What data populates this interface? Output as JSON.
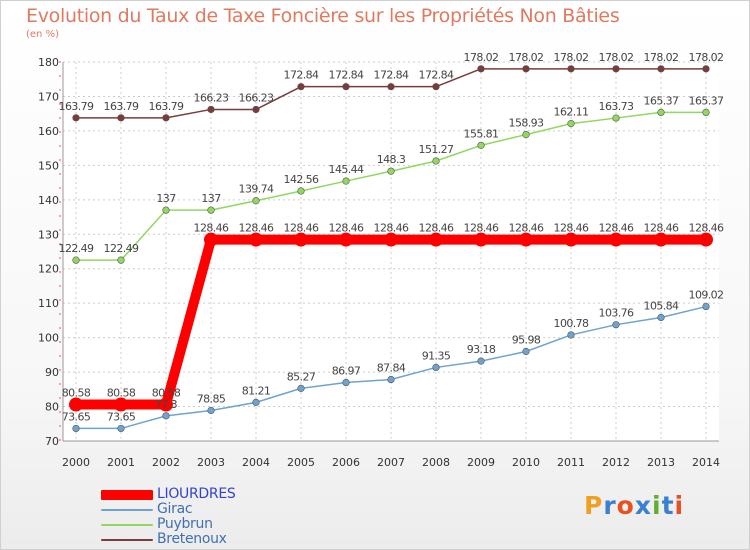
{
  "chart_data": {
    "type": "line",
    "title": "Evolution du Taux de Taxe Foncière sur les Propriétés Non Bâties",
    "ylabel": "(en %)",
    "xlabel": "",
    "ylim": [
      70,
      180
    ],
    "yticks": [
      70,
      80,
      90,
      100,
      110,
      120,
      130,
      140,
      150,
      160,
      170,
      180
    ],
    "grid": true,
    "legend_position": "bottom-left",
    "x": [
      "2000",
      "2001",
      "2002",
      "2003",
      "2004",
      "2005",
      "2006",
      "2007",
      "2008",
      "2009",
      "2010",
      "2011",
      "2012",
      "2013",
      "2014"
    ],
    "series": [
      {
        "name": "LIOURDRES",
        "color": "#ff0000",
        "values": [
          80.58,
          80.58,
          80.58,
          128.46,
          128.46,
          128.46,
          128.46,
          128.46,
          128.46,
          128.46,
          128.46,
          128.46,
          128.46,
          128.46,
          128.46
        ],
        "labels": [
          "80.58",
          "80.58",
          "80.58",
          "128.46",
          "128.46",
          "128.46",
          "128.46",
          "128.46",
          "128.46",
          "128.46",
          "128.46",
          "128.46",
          "128.46",
          "128.46",
          "128.46"
        ]
      },
      {
        "name": "Girac",
        "color": "#6fa3cf",
        "values": [
          73.65,
          73.65,
          77.3,
          78.85,
          81.21,
          85.27,
          86.97,
          87.84,
          91.35,
          93.18,
          95.98,
          100.78,
          103.76,
          105.84,
          109.02
        ],
        "labels": [
          "73.65",
          "73.65",
          "77.3",
          "78.85",
          "81.21",
          "85.27",
          "86.97",
          "87.84",
          "91.35",
          "93.18",
          "95.98",
          "100.78",
          "103.76",
          "105.84",
          "109.02"
        ]
      },
      {
        "name": "Puybrun",
        "color": "#90d860",
        "values": [
          122.49,
          122.49,
          137,
          137,
          139.74,
          142.56,
          145.44,
          148.3,
          151.27,
          155.81,
          158.93,
          162.11,
          163.73,
          165.37,
          165.37
        ],
        "labels": [
          "122.49",
          "122.49",
          "137",
          "137",
          "139.74",
          "142.56",
          "145.44",
          "148.3",
          "151.27",
          "155.81",
          "158.93",
          "162.11",
          "163.73",
          "165.37",
          "165.37"
        ]
      },
      {
        "name": "Bretenoux",
        "color": "#7b3b3b",
        "values": [
          163.79,
          163.79,
          163.79,
          166.23,
          166.23,
          172.84,
          172.84,
          172.84,
          172.84,
          178.02,
          178.02,
          178.02,
          178.02,
          178.02,
          178.02
        ],
        "labels": [
          "163.79",
          "163.79",
          "163.79",
          "166.23",
          "166.23",
          "172.84",
          "172.84",
          "172.84",
          "172.84",
          "178.02",
          "178.02",
          "178.02",
          "178.02",
          "178.02",
          "178.02"
        ]
      }
    ]
  },
  "logo": {
    "text": "Proxiti",
    "colors": [
      "#f0a020",
      "#3a7fd0",
      "#e85020",
      "#3a7fd0",
      "#60b030",
      "#3a7fd0",
      "#e85020"
    ]
  }
}
